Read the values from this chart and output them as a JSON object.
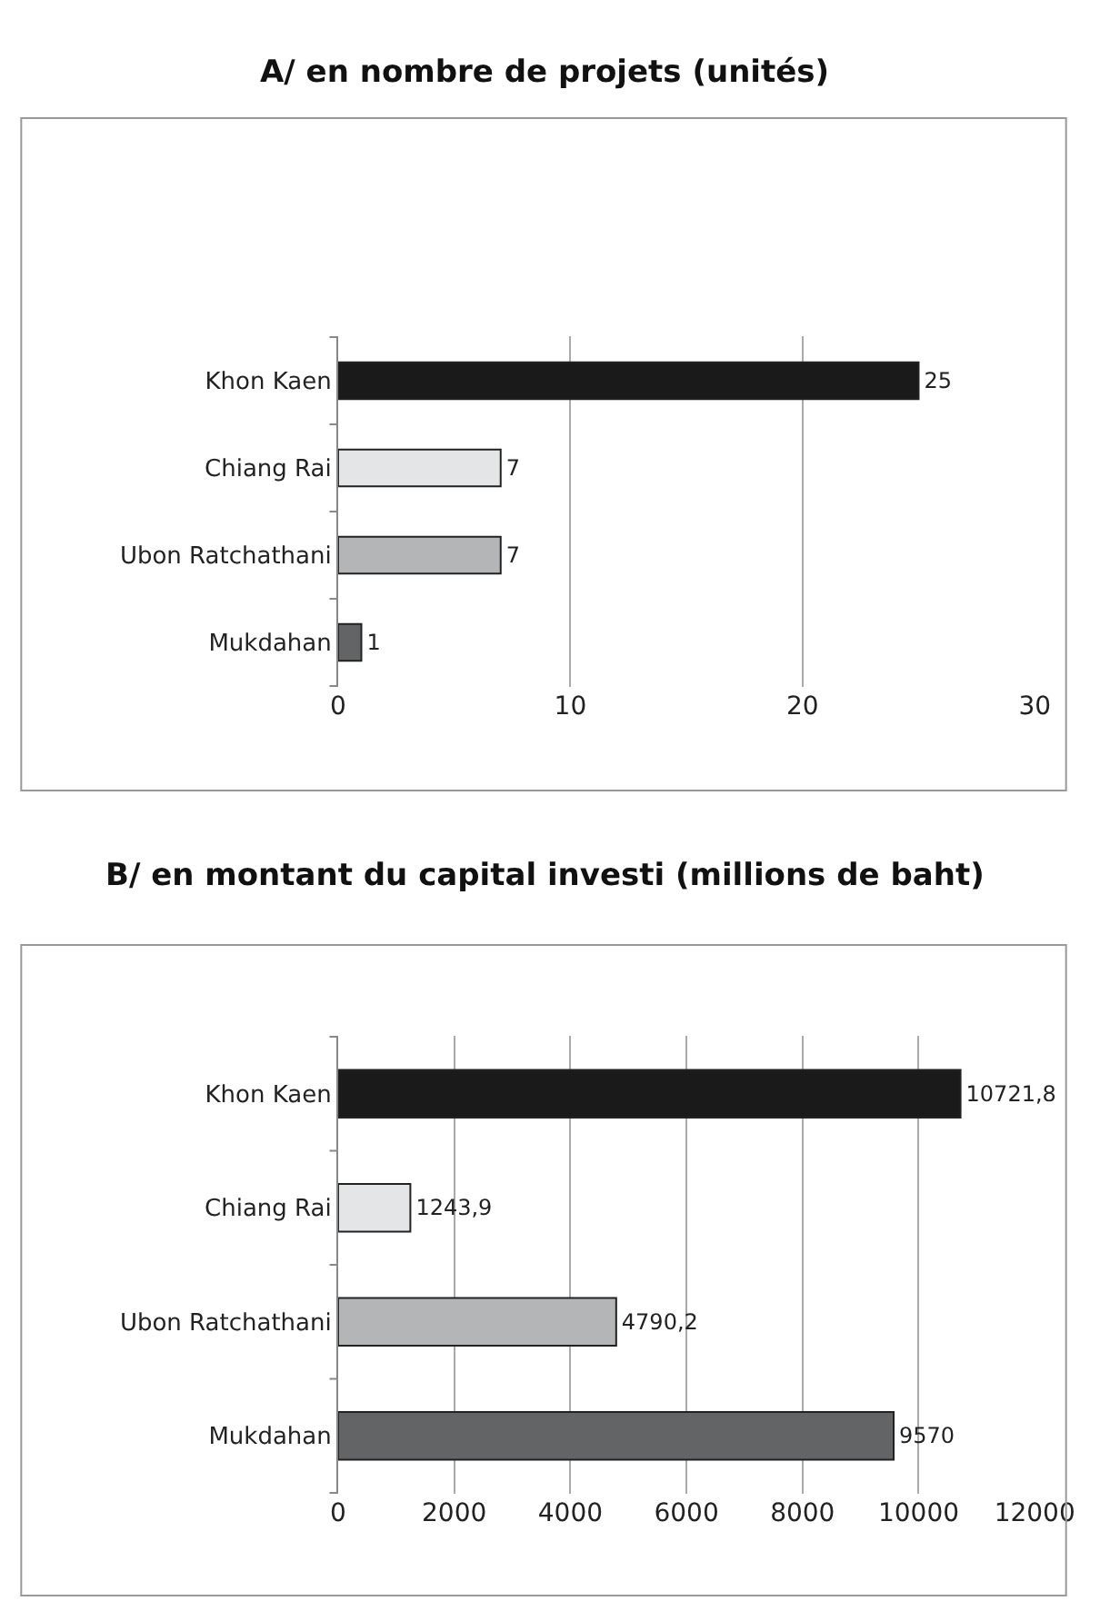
{
  "chart_data": [
    {
      "type": "bar",
      "orientation": "horizontal",
      "title": "A/ en nombre de projets (unités)",
      "categories": [
        "Khon Kaen",
        "Chiang Rai",
        "Ubon Ratchathani",
        "Mukdahan"
      ],
      "values": [
        25,
        7,
        7,
        1
      ],
      "colors": [
        "#1a1a1a",
        "#e4e5e6",
        "#b4b5b7",
        "#636466"
      ],
      "xlim": [
        0,
        30
      ],
      "xticks": [
        0,
        10,
        20,
        30
      ],
      "grid": "x",
      "data_labels": true
    },
    {
      "type": "bar",
      "orientation": "horizontal",
      "title": "B/ en montant du capital investi (millions de baht)",
      "categories": [
        "Khon Kaen",
        "Chiang Rai",
        "Ubon Ratchathani",
        "Mukdahan"
      ],
      "values": [
        10721.8,
        1243.9,
        4790.2,
        9570
      ],
      "value_labels": [
        "10721,8",
        "1243,9",
        "4790,2",
        "9570"
      ],
      "colors": [
        "#1a1a1a",
        "#e4e5e6",
        "#b4b5b7",
        "#636466"
      ],
      "xlim": [
        0,
        12000
      ],
      "xticks": [
        0,
        2000,
        4000,
        6000,
        8000,
        10000,
        12000
      ],
      "grid": "x"
    }
  ]
}
